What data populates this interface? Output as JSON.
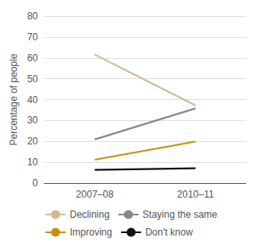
{
  "chart_data": {
    "type": "line",
    "categories": [
      "2007–08",
      "2010–11"
    ],
    "series": [
      {
        "name": "Declining",
        "color": "#d4b896",
        "values": [
          61.6,
          37.2
        ]
      },
      {
        "name": "Staying the same",
        "color": "#888888",
        "values": [
          20.9,
          35.8
        ]
      },
      {
        "name": "Improving",
        "color": "#c8900a",
        "values": [
          11.2,
          19.9
        ]
      },
      {
        "name": "Don't know",
        "color": "#111111",
        "values": [
          6.3,
          7.1
        ]
      }
    ],
    "ylabel": "Percentage of people",
    "ylim": [
      0,
      80
    ],
    "yticks": [
      0,
      10,
      20,
      30,
      40,
      50,
      60,
      70,
      80
    ],
    "grid": true,
    "legend": "bottom"
  }
}
